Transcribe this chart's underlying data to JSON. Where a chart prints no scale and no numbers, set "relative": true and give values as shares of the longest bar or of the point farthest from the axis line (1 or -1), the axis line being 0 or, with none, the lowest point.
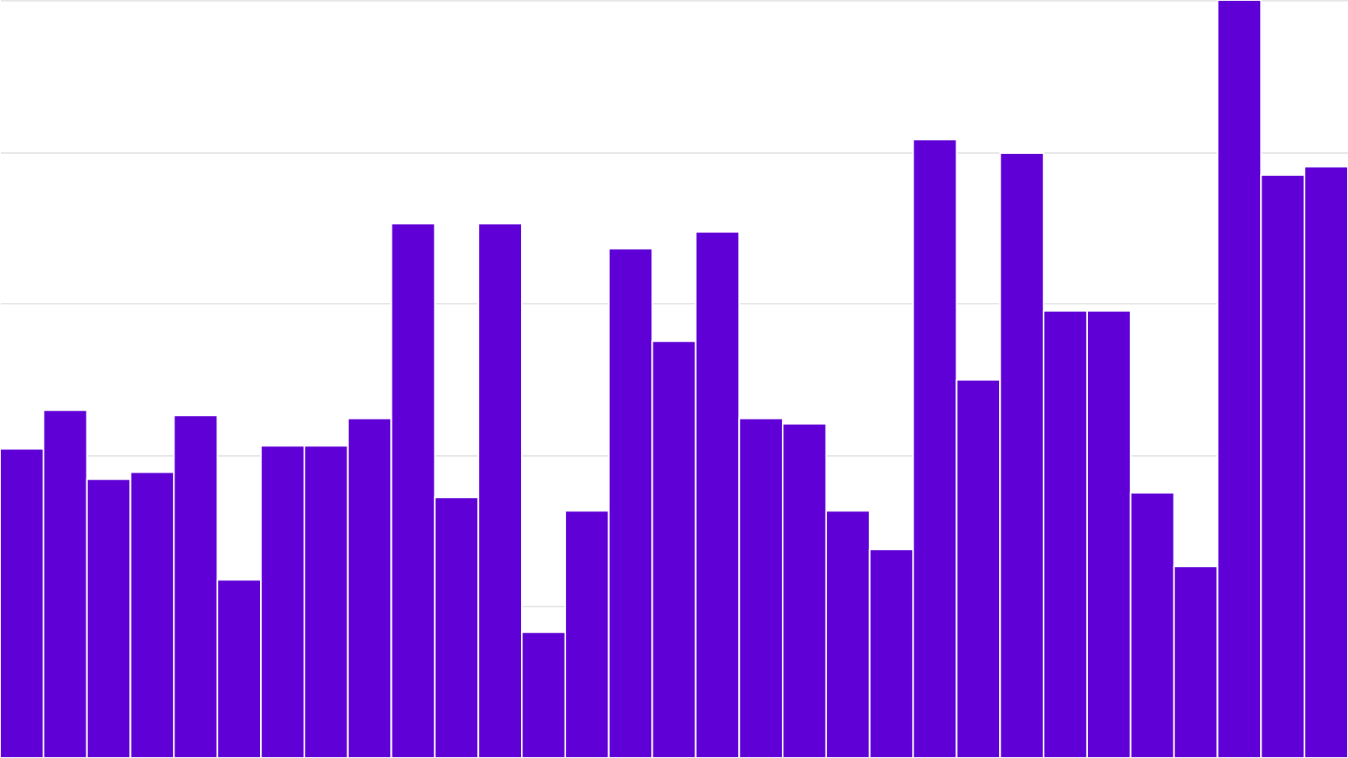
{
  "chart_data": {
    "type": "bar",
    "relative": true,
    "grid": "y",
    "color": "#5f00d6",
    "categories": [
      null,
      null,
      null,
      null,
      null,
      null,
      null,
      null,
      null,
      null,
      null,
      null,
      null,
      null,
      null,
      null,
      null,
      null,
      null,
      null,
      null,
      null,
      null,
      null,
      null,
      null,
      null,
      null,
      null,
      null,
      null
    ],
    "values": [
      0.408,
      0.459,
      0.368,
      0.377,
      0.452,
      0.235,
      0.412,
      0.412,
      0.448,
      0.705,
      0.344,
      0.705,
      0.166,
      0.326,
      0.672,
      0.55,
      0.694,
      0.448,
      0.441,
      0.326,
      0.275,
      0.816,
      0.499,
      0.798,
      0.59,
      0.59,
      0.35,
      0.253,
      1,
      0.769,
      0.78
    ]
  }
}
